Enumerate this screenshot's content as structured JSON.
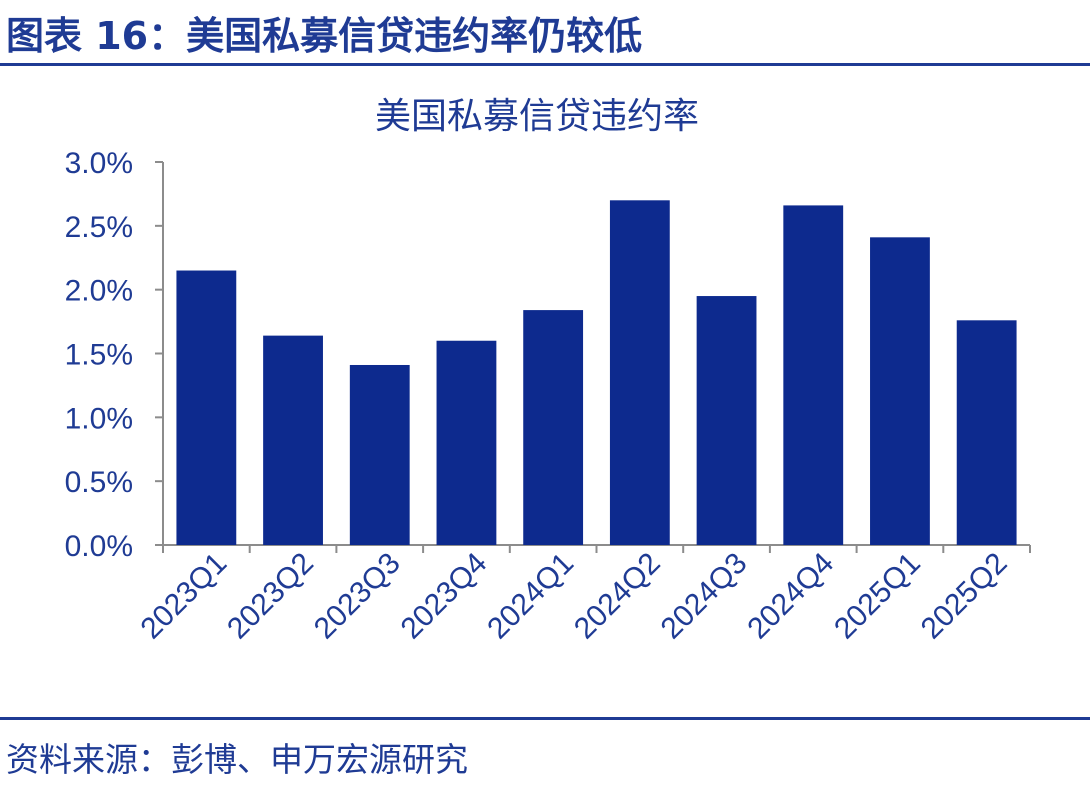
{
  "figure_title": "图表 16：美国私募信贷违约率仍较低",
  "source": "资料来源：彭博、申万宏源研究",
  "colors": {
    "accent": "#1f3b94",
    "bar": "#0d2a8e",
    "axis": "#8c8c8c",
    "text": "#1f3b94"
  },
  "chart_data": {
    "type": "bar",
    "title": "美国私募信贷违约率",
    "categories": [
      "2023Q1",
      "2023Q2",
      "2023Q3",
      "2023Q4",
      "2024Q1",
      "2024Q2",
      "2024Q3",
      "2024Q4",
      "2025Q1",
      "2025Q2"
    ],
    "series": [
      {
        "values": [
          2.15,
          1.64,
          1.41,
          1.6,
          1.84,
          2.7,
          1.95,
          2.66,
          2.41,
          1.76
        ]
      }
    ],
    "ylim": [
      0,
      3.0
    ],
    "yticks": [
      "0.0%",
      "0.5%",
      "1.0%",
      "1.5%",
      "2.0%",
      "2.5%",
      "3.0%"
    ],
    "ytick_values": [
      0,
      0.5,
      1.0,
      1.5,
      2.0,
      2.5,
      3.0
    ],
    "legend": "none",
    "grid": false
  }
}
